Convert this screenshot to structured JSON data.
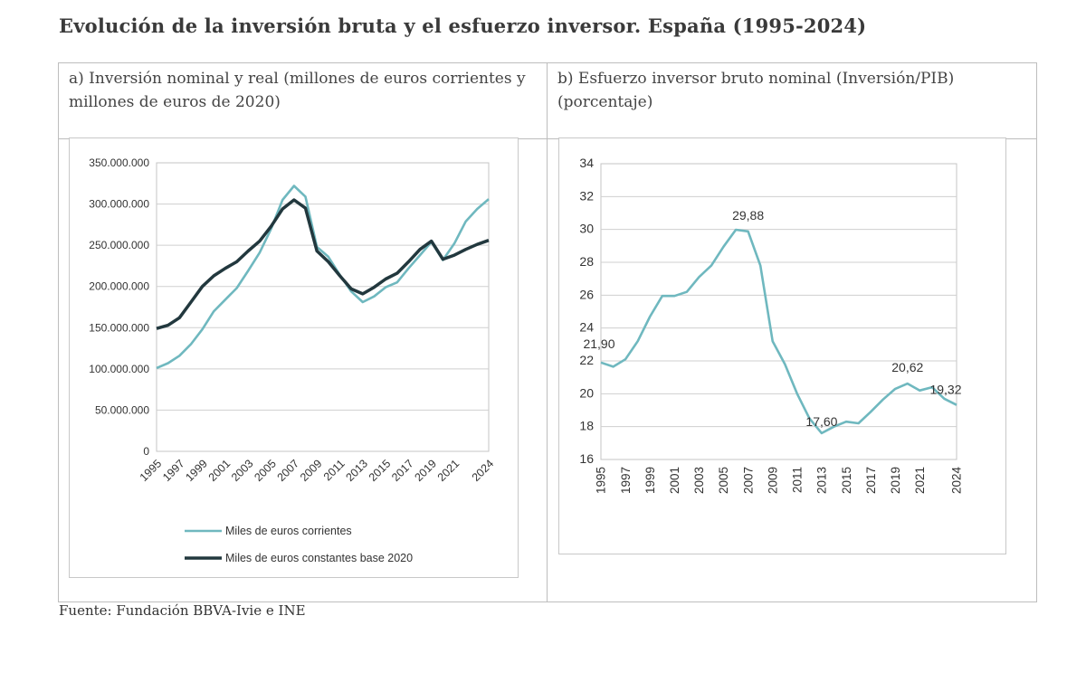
{
  "title": "Evolución de la inversión bruta y el esfuerzo inversor. España (1995-2024)",
  "panel_a": {
    "heading": "a) Inversión nominal y real (millones de euros corrientes y millones de euros de 2020)"
  },
  "panel_b": {
    "heading": "b) Esfuerzo inversor bruto nominal (Inversión/PIB) (porcentaje)"
  },
  "source": "Fuente: Fundación BBVA-Ivie e INE",
  "colors": {
    "current": "#6fb8bf",
    "constant": "#22383e",
    "grid": "#cfcfcf",
    "axis_text": "#333333"
  },
  "chart_data": [
    {
      "type": "line",
      "title": "a) Inversión nominal y real",
      "x": [
        1995,
        1996,
        1997,
        1998,
        1999,
        2000,
        2001,
        2002,
        2003,
        2004,
        2005,
        2006,
        2007,
        2008,
        2009,
        2010,
        2011,
        2012,
        2013,
        2014,
        2015,
        2016,
        2017,
        2018,
        2019,
        2020,
        2021,
        2022,
        2023,
        2024
      ],
      "xtick_labels": [
        "1995",
        "1997",
        "1999",
        "2001",
        "2003",
        "2005",
        "2007",
        "2009",
        "2011",
        "2013",
        "2015",
        "2017",
        "2019",
        "2021",
        "2024"
      ],
      "ylim": [
        0,
        350000000
      ],
      "ytick_values": [
        0,
        50000000,
        100000000,
        150000000,
        200000000,
        250000000,
        300000000,
        350000000
      ],
      "ytick_labels": [
        "0",
        "50.000.000",
        "100.000.000",
        "150.000.000",
        "200.000.000",
        "250.000.000",
        "300.000.000",
        "350.000.000"
      ],
      "grid": true,
      "legend_position": "bottom",
      "series": [
        {
          "name": "Miles de euros corrientes",
          "color": "#6fb8bf",
          "values": [
            101000000,
            107000000,
            116000000,
            130000000,
            148000000,
            170000000,
            184000000,
            198000000,
            219000000,
            241000000,
            270000000,
            305000000,
            322000000,
            309000000,
            248000000,
            236000000,
            214000000,
            194000000,
            181000000,
            188000000,
            199000000,
            205000000,
            222000000,
            238000000,
            254000000,
            232000000,
            252000000,
            279000000,
            294000000,
            306000000
          ]
        },
        {
          "name": "Miles de euros constantes base 2020",
          "color": "#22383e",
          "values": [
            149000000,
            153000000,
            162000000,
            181000000,
            200000000,
            213000000,
            222000000,
            230000000,
            243000000,
            255000000,
            273000000,
            294000000,
            305000000,
            295000000,
            243000000,
            230000000,
            213000000,
            197000000,
            191000000,
            199000000,
            209000000,
            216000000,
            230000000,
            245000000,
            255000000,
            233000000,
            238000000,
            245000000,
            251000000,
            256000000
          ]
        }
      ]
    },
    {
      "type": "line",
      "title": "b) Esfuerzo inversor bruto nominal (Inversión/PIB)",
      "x": [
        1995,
        1996,
        1997,
        1998,
        1999,
        2000,
        2001,
        2002,
        2003,
        2004,
        2005,
        2006,
        2007,
        2008,
        2009,
        2010,
        2011,
        2012,
        2013,
        2014,
        2015,
        2016,
        2017,
        2018,
        2019,
        2020,
        2021,
        2022,
        2023,
        2024
      ],
      "xtick_labels": [
        "1995",
        "1997",
        "1999",
        "2001",
        "2003",
        "2005",
        "2007",
        "2009",
        "2011",
        "2013",
        "2015",
        "2017",
        "2019",
        "2021",
        "2024"
      ],
      "ylim": [
        16,
        34
      ],
      "ytick_values": [
        16,
        18,
        20,
        22,
        24,
        26,
        28,
        30,
        32,
        34
      ],
      "ytick_labels": [
        "16",
        "18",
        "20",
        "22",
        "24",
        "26",
        "28",
        "30",
        "32",
        "34"
      ],
      "grid": true,
      "series": [
        {
          "name": "Inversión/PIB",
          "color": "#6fb8bf",
          "values": [
            21.9,
            21.65,
            22.1,
            23.2,
            24.7,
            25.95,
            25.95,
            26.2,
            27.1,
            27.8,
            28.95,
            29.98,
            29.88,
            27.8,
            23.2,
            21.8,
            20.0,
            18.5,
            17.6,
            18.0,
            18.3,
            18.2,
            18.9,
            19.65,
            20.3,
            20.62,
            20.2,
            20.4,
            19.7,
            19.32
          ]
        }
      ],
      "annotations": [
        {
          "year": 1995,
          "value": 21.9,
          "label": "21,90"
        },
        {
          "year": 2007,
          "value": 29.88,
          "label": "29,88"
        },
        {
          "year": 2013,
          "value": 17.6,
          "label": "17,60"
        },
        {
          "year": 2020,
          "value": 20.62,
          "label": "20,62"
        },
        {
          "year": 2024,
          "value": 19.32,
          "label": "19,32"
        }
      ]
    }
  ]
}
